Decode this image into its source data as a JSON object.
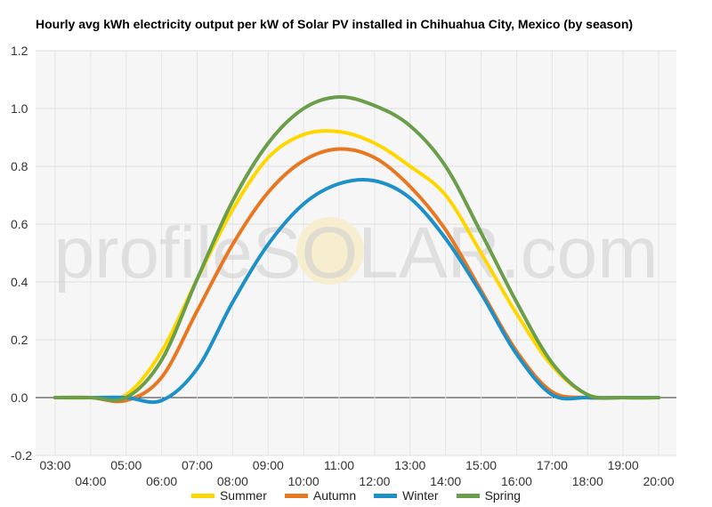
{
  "chart_data": {
    "type": "line",
    "title": "Hourly avg kWh electricity output per kW of Solar PV installed in Chihuahua City, Mexico (by season)",
    "x": [
      "03:00",
      "04:00",
      "05:00",
      "06:00",
      "07:00",
      "08:00",
      "09:00",
      "10:00",
      "11:00",
      "12:00",
      "13:00",
      "14:00",
      "15:00",
      "16:00",
      "17:00",
      "18:00",
      "19:00",
      "20:00"
    ],
    "ylim": [
      -0.2,
      1.2
    ],
    "yticks": [
      -0.2,
      0.0,
      0.2,
      0.4,
      0.6,
      0.8,
      1.0,
      1.2
    ],
    "grid": true,
    "legend_position": "bottom",
    "watermark": "profileSOLAR.com",
    "series": [
      {
        "name": "Summer",
        "color": "#FFD700",
        "values": [
          0.0,
          0.0,
          0.01,
          0.16,
          0.41,
          0.65,
          0.83,
          0.91,
          0.92,
          0.88,
          0.8,
          0.7,
          0.5,
          0.29,
          0.11,
          0.01,
          0.0,
          0.0
        ]
      },
      {
        "name": "Autumn",
        "color": "#E87722",
        "values": [
          0.0,
          0.0,
          -0.01,
          0.07,
          0.3,
          0.53,
          0.71,
          0.82,
          0.86,
          0.83,
          0.73,
          0.58,
          0.37,
          0.16,
          0.02,
          0.0,
          0.0,
          0.0
        ]
      },
      {
        "name": "Winter",
        "color": "#1E90C8",
        "values": [
          0.0,
          0.0,
          0.0,
          -0.01,
          0.1,
          0.33,
          0.53,
          0.67,
          0.74,
          0.75,
          0.69,
          0.55,
          0.36,
          0.15,
          0.01,
          0.0,
          0.0,
          0.0
        ]
      },
      {
        "name": "Spring",
        "color": "#6B9E4A",
        "values": [
          0.0,
          0.0,
          0.0,
          0.13,
          0.41,
          0.68,
          0.88,
          1.0,
          1.04,
          1.01,
          0.94,
          0.8,
          0.57,
          0.33,
          0.12,
          0.01,
          0.0,
          0.0
        ]
      }
    ]
  }
}
